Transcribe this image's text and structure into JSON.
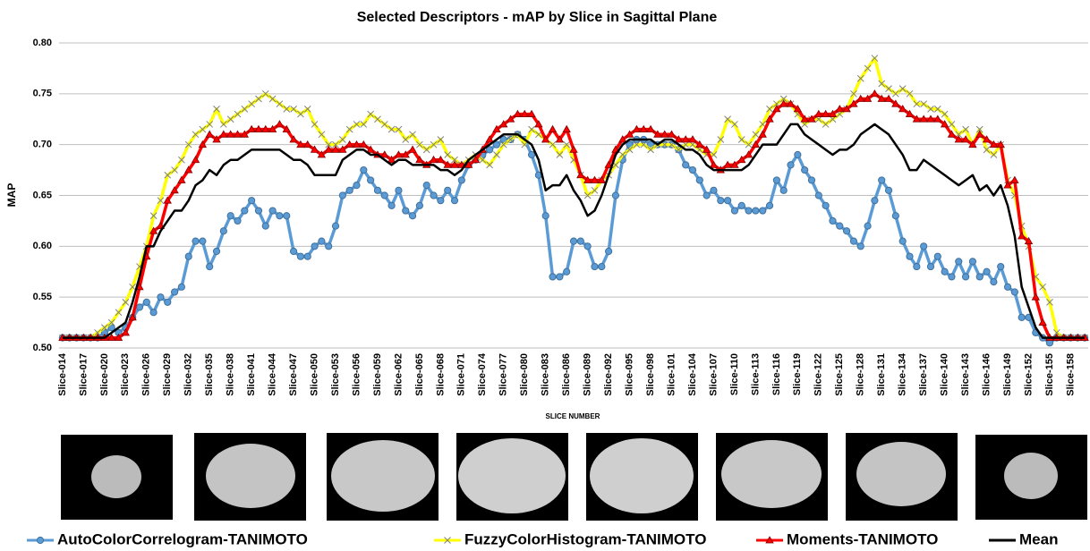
{
  "chart_data": {
    "type": "line",
    "title": "Selected Descriptors  - mAP by Slice in Sagittal Plane",
    "x_label": "SLICE NUMBER",
    "y_label": "MAP",
    "categories": [
      "Slice-014",
      null,
      null,
      "Slice-017",
      null,
      null,
      "Slice-020",
      null,
      null,
      "Slice-023",
      null,
      null,
      "Slice-026",
      null,
      null,
      "Slice-029",
      null,
      null,
      "Slice-032",
      null,
      null,
      "Slice-035",
      null,
      null,
      "Slice-038",
      null,
      null,
      "Slice-041",
      null,
      null,
      "Slice-044",
      null,
      null,
      "Slice-047",
      null,
      null,
      "Slice-050",
      null,
      null,
      "Slice-053",
      null,
      null,
      "Slice-056",
      null,
      null,
      "Slice-059",
      null,
      null,
      "Slice-062",
      null,
      null,
      "Slice-065",
      null,
      null,
      "Slice-068",
      null,
      null,
      "Slice-071",
      null,
      null,
      "Slice-074",
      null,
      null,
      "Slice-077",
      null,
      null,
      "Slice-080",
      null,
      null,
      "Slice-083",
      null,
      null,
      "Slice-086",
      null,
      null,
      "Slice-089",
      null,
      null,
      "Slice-092",
      null,
      null,
      "Slice-095",
      null,
      null,
      "Slice-098",
      null,
      null,
      "Slice-101",
      null,
      null,
      "Slice-104",
      null,
      null,
      "Slice-107",
      null,
      null,
      "Slice-110",
      null,
      null,
      "Slice-113",
      null,
      null,
      "Slice-116",
      null,
      null,
      "Slice-119",
      null,
      null,
      "Slice-122",
      null,
      null,
      "Slice-125",
      null,
      null,
      "Slice-128",
      null,
      null,
      "Slice-131",
      null,
      null,
      "Slice-134",
      null,
      null,
      "Slice-137",
      null,
      null,
      "Slice-140",
      null,
      null,
      "Slice-143",
      null,
      null,
      "Slice-146",
      null,
      null,
      "Slice-149",
      null,
      null,
      "Slice-152",
      null,
      null,
      "Slice-155",
      null,
      null,
      "Slice-158",
      null,
      null
    ],
    "ylim": [
      0.5,
      0.8
    ],
    "yticks": [
      {
        "value": 0.5,
        "label": "0.50"
      },
      {
        "value": 0.55,
        "label": "0.55"
      },
      {
        "value": 0.6,
        "label": "0.60"
      },
      {
        "value": 0.65,
        "label": "0.65"
      },
      {
        "value": 0.7,
        "label": "0.70"
      },
      {
        "value": 0.75,
        "label": "0.75"
      },
      {
        "value": 0.8,
        "label": "0.80"
      }
    ],
    "grid": true,
    "series": [
      {
        "name": "AutoColorCorrelogram-TANIMOTO",
        "color": "#5b9bd5",
        "marker": "circle",
        "values": [
          0.51,
          0.51,
          0.51,
          0.51,
          0.51,
          0.51,
          0.515,
          0.52,
          0.515,
          0.52,
          0.53,
          0.54,
          0.545,
          0.535,
          0.55,
          0.545,
          0.555,
          0.56,
          0.59,
          0.605,
          0.605,
          0.58,
          0.595,
          0.615,
          0.63,
          0.625,
          0.635,
          0.645,
          0.635,
          0.62,
          0.635,
          0.63,
          0.63,
          0.595,
          0.59,
          0.59,
          0.6,
          0.605,
          0.6,
          0.62,
          0.65,
          0.655,
          0.66,
          0.675,
          0.665,
          0.655,
          0.65,
          0.64,
          0.655,
          0.635,
          0.63,
          0.64,
          0.66,
          0.65,
          0.645,
          0.655,
          0.645,
          0.665,
          0.68,
          0.685,
          0.69,
          0.695,
          0.7,
          0.705,
          0.705,
          0.71,
          0.705,
          0.69,
          0.67,
          0.63,
          0.57,
          0.57,
          0.575,
          0.605,
          0.605,
          0.6,
          0.58,
          0.58,
          0.595,
          0.65,
          0.685,
          0.7,
          0.705,
          0.705,
          0.7,
          0.7,
          0.7,
          0.7,
          0.695,
          0.68,
          0.675,
          0.665,
          0.65,
          0.655,
          0.645,
          0.645,
          0.635,
          0.64,
          0.635,
          0.635,
          0.635,
          0.64,
          0.665,
          0.655,
          0.68,
          0.69,
          0.675,
          0.665,
          0.65,
          0.64,
          0.625,
          0.62,
          0.615,
          0.605,
          0.6,
          0.62,
          0.645,
          0.665,
          0.655,
          0.63,
          0.605,
          0.59,
          0.58,
          0.6,
          0.58,
          0.59,
          0.575,
          0.57,
          0.585,
          0.57,
          0.585,
          0.57,
          0.575,
          0.565,
          0.58,
          0.56,
          0.555,
          0.53,
          0.53,
          0.515,
          0.51,
          0.505,
          0.51,
          0.51,
          0.51,
          0.51,
          0.51
        ]
      },
      {
        "name": "FuzzyColorHistogram-TANIMOTO",
        "color": "#ffff00",
        "marker": "x",
        "values": [
          0.51,
          0.51,
          0.51,
          0.51,
          0.51,
          0.515,
          0.52,
          0.525,
          0.535,
          0.545,
          0.56,
          0.58,
          0.6,
          0.63,
          0.645,
          0.67,
          0.675,
          0.685,
          0.7,
          0.71,
          0.715,
          0.72,
          0.735,
          0.72,
          0.725,
          0.73,
          0.735,
          0.74,
          0.745,
          0.75,
          0.745,
          0.74,
          0.735,
          0.735,
          0.73,
          0.735,
          0.72,
          0.71,
          0.7,
          0.7,
          0.705,
          0.715,
          0.72,
          0.72,
          0.73,
          0.725,
          0.72,
          0.715,
          0.715,
          0.705,
          0.71,
          0.7,
          0.695,
          0.7,
          0.705,
          0.69,
          0.685,
          0.68,
          0.685,
          0.69,
          0.685,
          0.68,
          0.69,
          0.7,
          0.705,
          0.71,
          0.7,
          0.715,
          0.71,
          0.705,
          0.7,
          0.69,
          0.7,
          0.685,
          0.67,
          0.65,
          0.655,
          0.665,
          0.67,
          0.68,
          0.69,
          0.695,
          0.7,
          0.7,
          0.695,
          0.7,
          0.7,
          0.7,
          0.695,
          0.7,
          0.7,
          0.695,
          0.69,
          0.69,
          0.705,
          0.725,
          0.72,
          0.705,
          0.7,
          0.71,
          0.72,
          0.735,
          0.74,
          0.745,
          0.74,
          0.73,
          0.72,
          0.725,
          0.725,
          0.72,
          0.725,
          0.73,
          0.735,
          0.75,
          0.765,
          0.775,
          0.785,
          0.76,
          0.755,
          0.75,
          0.755,
          0.75,
          0.74,
          0.74,
          0.735,
          0.735,
          0.73,
          0.72,
          0.71,
          0.715,
          0.7,
          0.715,
          0.695,
          0.69,
          0.7,
          0.665,
          0.65,
          0.62,
          0.6,
          0.57,
          0.56,
          0.545,
          0.515,
          0.51,
          0.51,
          0.51,
          0.51
        ]
      },
      {
        "name": "Moments-TANIMOTO",
        "color": "#ff0000",
        "marker": "triangle",
        "values": [
          0.51,
          0.51,
          0.51,
          0.51,
          0.51,
          0.51,
          0.51,
          0.51,
          0.51,
          0.515,
          0.53,
          0.56,
          0.59,
          0.615,
          0.62,
          0.645,
          0.655,
          0.665,
          0.675,
          0.685,
          0.7,
          0.71,
          0.705,
          0.71,
          0.71,
          0.71,
          0.71,
          0.715,
          0.715,
          0.715,
          0.715,
          0.72,
          0.715,
          0.705,
          0.7,
          0.7,
          0.695,
          0.69,
          0.695,
          0.695,
          0.695,
          0.7,
          0.7,
          0.7,
          0.695,
          0.69,
          0.69,
          0.685,
          0.69,
          0.69,
          0.695,
          0.685,
          0.68,
          0.685,
          0.685,
          0.68,
          0.68,
          0.68,
          0.68,
          0.685,
          0.695,
          0.705,
          0.715,
          0.72,
          0.725,
          0.73,
          0.73,
          0.73,
          0.72,
          0.705,
          0.715,
          0.705,
          0.715,
          0.695,
          0.67,
          0.665,
          0.665,
          0.665,
          0.68,
          0.695,
          0.705,
          0.71,
          0.715,
          0.715,
          0.715,
          0.71,
          0.71,
          0.71,
          0.705,
          0.705,
          0.705,
          0.7,
          0.695,
          0.68,
          0.675,
          0.68,
          0.68,
          0.685,
          0.69,
          0.7,
          0.71,
          0.725,
          0.735,
          0.74,
          0.74,
          0.735,
          0.725,
          0.725,
          0.73,
          0.73,
          0.73,
          0.735,
          0.735,
          0.74,
          0.745,
          0.745,
          0.75,
          0.745,
          0.745,
          0.74,
          0.735,
          0.73,
          0.725,
          0.725,
          0.725,
          0.725,
          0.72,
          0.71,
          0.705,
          0.705,
          0.7,
          0.71,
          0.705,
          0.7,
          0.7,
          0.66,
          0.665,
          0.61,
          0.605,
          0.55,
          0.525,
          0.51,
          0.51,
          0.51,
          0.51,
          0.51,
          0.51
        ]
      },
      {
        "name": "Mean",
        "color": "#000000",
        "marker": "none",
        "values": [
          0.51,
          0.51,
          0.51,
          0.51,
          0.51,
          0.51,
          0.51,
          0.515,
          0.52,
          0.525,
          0.545,
          0.57,
          0.6,
          0.6,
          0.615,
          0.625,
          0.635,
          0.635,
          0.645,
          0.66,
          0.665,
          0.675,
          0.67,
          0.68,
          0.685,
          0.685,
          0.69,
          0.695,
          0.695,
          0.695,
          0.695,
          0.695,
          0.69,
          0.685,
          0.685,
          0.68,
          0.67,
          0.67,
          0.67,
          0.67,
          0.685,
          0.69,
          0.695,
          0.695,
          0.69,
          0.69,
          0.685,
          0.68,
          0.685,
          0.685,
          0.68,
          0.68,
          0.68,
          0.68,
          0.675,
          0.675,
          0.67,
          0.675,
          0.685,
          0.69,
          0.695,
          0.7,
          0.705,
          0.71,
          0.71,
          0.71,
          0.705,
          0.7,
          0.685,
          0.655,
          0.66,
          0.66,
          0.67,
          0.655,
          0.645,
          0.63,
          0.635,
          0.65,
          0.67,
          0.69,
          0.7,
          0.705,
          0.705,
          0.705,
          0.705,
          0.7,
          0.705,
          0.705,
          0.7,
          0.695,
          0.695,
          0.69,
          0.68,
          0.675,
          0.675,
          0.675,
          0.675,
          0.675,
          0.68,
          0.69,
          0.7,
          0.7,
          0.7,
          0.71,
          0.72,
          0.72,
          0.71,
          0.705,
          0.7,
          0.695,
          0.69,
          0.695,
          0.695,
          0.7,
          0.71,
          0.715,
          0.72,
          0.715,
          0.71,
          0.7,
          0.69,
          0.675,
          0.675,
          0.685,
          0.68,
          0.675,
          0.67,
          0.665,
          0.66,
          0.665,
          0.67,
          0.655,
          0.66,
          0.65,
          0.66,
          0.64,
          0.61,
          0.56,
          0.54,
          0.52,
          0.51,
          0.51,
          0.51,
          0.51,
          0.51,
          0.51,
          0.51
        ]
      }
    ]
  }
}
